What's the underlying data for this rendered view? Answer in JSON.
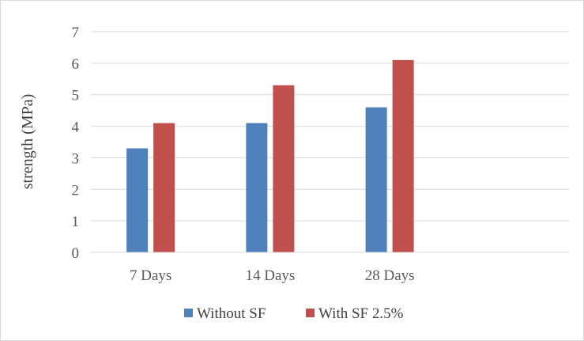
{
  "chart_data": {
    "type": "bar",
    "title": "",
    "xlabel": "",
    "ylabel": "strength (MPa)",
    "categories": [
      "7 Days",
      "14 Days",
      "28 Days",
      ""
    ],
    "ylim": [
      0,
      7
    ],
    "yticks": [
      0,
      1,
      2,
      3,
      4,
      5,
      6,
      7
    ],
    "grid": true,
    "legend_position": "bottom",
    "series": [
      {
        "name": "Without SF",
        "color": "#4f81bd",
        "values": [
          3.3,
          4.1,
          4.6,
          null
        ]
      },
      {
        "name": "With SF 2.5%",
        "color": "#c0504d",
        "values": [
          4.1,
          5.3,
          6.1,
          null
        ]
      }
    ]
  }
}
